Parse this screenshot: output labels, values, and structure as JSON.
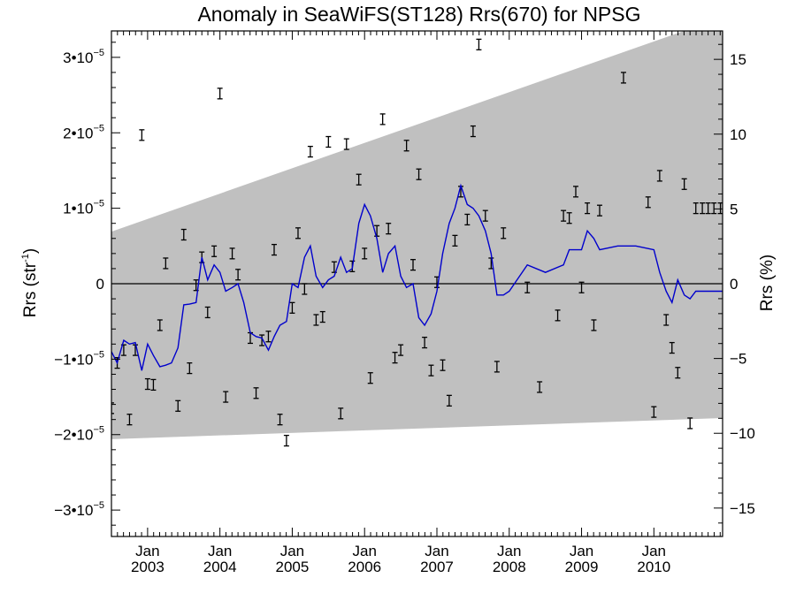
{
  "chart_data": {
    "type": "line",
    "title": "Anomaly in SeaWiFS(ST128) Rrs(670) for NPSG",
    "ylabel_left": {
      "base": "Rrs (str",
      "sup": "-1",
      "tail": ")"
    },
    "ylabel_right": "Rrs (%)",
    "xlabel": "",
    "x_unit": "decimal year",
    "xlim": [
      2002.5,
      2010.95
    ],
    "ylim": [
      -3.35e-05,
      3.35e-05
    ],
    "ylim_right_percent": [
      -16.9,
      16.9
    ],
    "grid": false,
    "x_ticks": [
      {
        "x": 2003.0,
        "jan": "Jan",
        "year": "2003"
      },
      {
        "x": 2004.0,
        "jan": "Jan",
        "year": "2004"
      },
      {
        "x": 2005.0,
        "jan": "Jan",
        "year": "2005"
      },
      {
        "x": 2006.0,
        "jan": "Jan",
        "year": "2006"
      },
      {
        "x": 2007.0,
        "jan": "Jan",
        "year": "2007"
      },
      {
        "x": 2008.0,
        "jan": "Jan",
        "year": "2008"
      },
      {
        "x": 2009.0,
        "jan": "Jan",
        "year": "2009"
      },
      {
        "x": 2010.0,
        "jan": "Jan",
        "year": "2010"
      }
    ],
    "y_ticks_left": [
      {
        "v": 3e-05,
        "mant": "3•10",
        "exp": "−5"
      },
      {
        "v": 2e-05,
        "mant": "2•10",
        "exp": "−5"
      },
      {
        "v": 1e-05,
        "mant": "1•10",
        "exp": "−5"
      },
      {
        "v": 0,
        "mant": "0",
        "exp": ""
      },
      {
        "v": -1e-05,
        "mant": "−1•10",
        "exp": "−5"
      },
      {
        "v": -2e-05,
        "mant": "−2•10",
        "exp": "−5"
      },
      {
        "v": -3e-05,
        "mant": "−3•10",
        "exp": "−5"
      }
    ],
    "y_ticks_right": [
      {
        "v": 15,
        "label": "15"
      },
      {
        "v": 10,
        "label": "10"
      },
      {
        "v": 5,
        "label": "5"
      },
      {
        "v": 0,
        "label": "0"
      },
      {
        "v": -5,
        "label": "−5"
      },
      {
        "v": -10,
        "label": "−10"
      },
      {
        "v": -15,
        "label": "−15"
      }
    ],
    "colors": {
      "band": "#c0c0c0",
      "line": "#0000cc",
      "points": "#000000",
      "zero": "#000000"
    },
    "band": {
      "x": [
        2002.5,
        2010.95
      ],
      "upper": [
        6.9e-06,
        3.53e-05
      ],
      "lower": [
        -2.06e-05,
        -1.78e-05
      ]
    },
    "zero_line": 0,
    "series": [
      {
        "kind": "line",
        "x": [
          2002.5,
          2002.58,
          2002.67,
          2002.75,
          2002.83,
          2002.92,
          2003.0,
          2003.08,
          2003.17,
          2003.25,
          2003.33,
          2003.42,
          2003.5,
          2003.58,
          2003.67,
          2003.75,
          2003.83,
          2003.92,
          2004.0,
          2004.08,
          2004.17,
          2004.25,
          2004.33,
          2004.42,
          2004.5,
          2004.58,
          2004.67,
          2004.75,
          2004.83,
          2004.92,
          2005.0,
          2005.08,
          2005.17,
          2005.25,
          2005.33,
          2005.42,
          2005.5,
          2005.58,
          2005.67,
          2005.75,
          2005.83,
          2005.92,
          2006.0,
          2006.08,
          2006.17,
          2006.25,
          2006.33,
          2006.42,
          2006.5,
          2006.58,
          2006.67,
          2006.75,
          2006.83,
          2006.92,
          2007.0,
          2007.08,
          2007.17,
          2007.25,
          2007.33,
          2007.42,
          2007.5,
          2007.58,
          2007.67,
          2007.75,
          2007.83,
          2007.92,
          2008.0,
          2008.25,
          2008.5,
          2008.75,
          2008.83,
          2008.92,
          2009.0,
          2009.08,
          2009.17,
          2009.25,
          2009.5,
          2009.75,
          2010.0,
          2010.08,
          2010.17,
          2010.25,
          2010.33,
          2010.42,
          2010.5,
          2010.58,
          2010.67,
          2010.75,
          2010.83,
          2010.92,
          2010.95
        ],
        "y": [
          -9e-06,
          -1.05e-05,
          -7.5e-06,
          -8e-06,
          -7.8e-06,
          -1.15e-05,
          -8e-06,
          -9.5e-06,
          -1.1e-05,
          -1.08e-05,
          -1.05e-05,
          -8.5e-06,
          -2.8e-06,
          -2.7e-06,
          -2.5e-06,
          3.5e-06,
          5e-07,
          2.5e-06,
          1.5e-06,
          -1e-06,
          -5e-07,
          0.0,
          -2.5e-06,
          -6.5e-06,
          -7e-06,
          -7.2e-06,
          -8.8e-06,
          -7e-06,
          -5.5e-06,
          -5e-06,
          0.0,
          -5e-07,
          3.5e-06,
          5e-06,
          1e-06,
          -5e-07,
          5e-07,
          1e-06,
          3.5e-06,
          1.5e-06,
          2e-06,
          8e-06,
          1.05e-05,
          9e-06,
          6e-06,
          1.5e-06,
          4e-06,
          5e-06,
          1e-06,
          -5e-07,
          0.0,
          -4.5e-06,
          -5.5e-06,
          -4e-06,
          -1e-06,
          4e-06,
          8e-06,
          1e-05,
          1.3e-05,
          1.05e-05,
          1e-05,
          9e-06,
          7e-06,
          4e-06,
          -1.5e-06,
          -1.5e-06,
          -1e-06,
          2.5e-06,
          1.5e-06,
          2.5e-06,
          4.5e-06,
          4.5e-06,
          4.5e-06,
          7e-06,
          6e-06,
          4.5e-06,
          5e-06,
          5e-06,
          4.5e-06,
          1.5e-06,
          -1e-06,
          -2.5e-06,
          5e-07,
          -1.5e-06,
          -2e-06,
          -1e-06,
          -1e-06,
          -1e-06,
          -1e-06,
          -1e-06,
          -1e-06
        ]
      },
      {
        "kind": "errorbar",
        "x": [
          2002.5,
          2002.58,
          2002.67,
          2002.75,
          2002.83,
          2002.92,
          2003.0,
          2003.08,
          2003.17,
          2003.25,
          2003.42,
          2003.5,
          2003.58,
          2003.67,
          2003.75,
          2003.83,
          2003.92,
          2004.0,
          2004.08,
          2004.17,
          2004.25,
          2004.42,
          2004.5,
          2004.58,
          2004.67,
          2004.75,
          2004.83,
          2004.92,
          2005.0,
          2005.08,
          2005.17,
          2005.25,
          2005.33,
          2005.42,
          2005.5,
          2005.58,
          2005.67,
          2005.75,
          2005.83,
          2005.92,
          2006.0,
          2006.08,
          2006.17,
          2006.25,
          2006.33,
          2006.42,
          2006.5,
          2006.58,
          2006.67,
          2006.75,
          2006.83,
          2006.92,
          2007.0,
          2007.08,
          2007.17,
          2007.25,
          2007.33,
          2007.42,
          2007.5,
          2007.58,
          2007.67,
          2007.75,
          2007.83,
          2007.92,
          2008.25,
          2008.42,
          2008.67,
          2008.75,
          2008.83,
          2008.92,
          2009.0,
          2009.08,
          2009.17,
          2009.25,
          2009.58,
          2009.92,
          2010.0,
          2010.08,
          2010.17,
          2010.25,
          2010.33,
          2010.42,
          2010.5,
          2010.58,
          2010.67,
          2010.75,
          2010.83,
          2010.92
        ],
        "y": [
          -1.65e-05,
          -1.05e-05,
          -8.8e-06,
          -1.8e-05,
          -8.8e-06,
          1.97e-05,
          -1.33e-05,
          -1.34e-05,
          -5.5e-06,
          2.7e-06,
          -1.62e-05,
          6.5e-06,
          -1.12e-05,
          -2e-07,
          3.5e-06,
          -3.8e-06,
          4.3e-06,
          2.52e-05,
          -1.5e-05,
          4e-06,
          1.2e-06,
          -7.2e-06,
          -1.45e-05,
          -7.5e-06,
          -7e-06,
          4.5e-06,
          -1.8e-05,
          -2.08e-05,
          -3.2e-06,
          6.7e-06,
          -7e-07,
          1.75e-05,
          -4.8e-06,
          -4.4e-06,
          1.88e-05,
          2.2e-06,
          -1.72e-05,
          1.85e-05,
          2.3e-06,
          1.38e-05,
          4e-06,
          -1.25e-05,
          7e-06,
          2.18e-05,
          7.3e-06,
          -9.8e-06,
          -8.8e-06,
          1.83e-05,
          2.5e-06,
          1.45e-05,
          -7.8e-06,
          -1.15e-05,
          2e-07,
          -1.08e-05,
          -1.55e-05,
          5.7e-06,
          1.22e-05,
          8.5e-06,
          2.02e-05,
          3.17e-05,
          9e-06,
          2.7e-06,
          -1.1e-05,
          6.7e-06,
          -5e-07,
          -1.37e-05,
          -4.2e-06,
          9e-06,
          8.7e-06,
          1.22e-05,
          -5e-07,
          1e-05,
          -5.5e-06,
          9.7e-06,
          2.73e-05,
          1.08e-05,
          -1.7e-05,
          1.43e-05,
          -4.8e-06,
          -8.5e-06,
          -1.18e-05,
          1.32e-05,
          -1.85e-05,
          1e-05,
          1e-05,
          1e-05,
          1e-05,
          1e-05
        ],
        "err": 7e-07
      }
    ]
  }
}
